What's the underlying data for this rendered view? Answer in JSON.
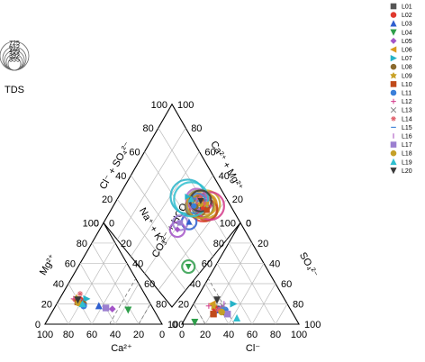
{
  "chart_data": {
    "type": "scatter",
    "subtype": "piper-diagram",
    "cation_axes": [
      "Mg²⁺",
      "Ca²⁺",
      "Na⁺ + K⁺"
    ],
    "anion_axes": [
      "CO₃²⁻ + HCO₃⁻",
      "Cl⁻",
      "SO₄²⁻"
    ],
    "diamond_axes": [
      "Cl⁻ + SO₄²⁻",
      "Ca²⁺ + Mg²⁺"
    ],
    "cation_ticks": [
      "100",
      "80",
      "60",
      "40",
      "20",
      "0"
    ],
    "anion_ticks": [
      "0",
      "20",
      "40",
      "60",
      "80",
      "100"
    ],
    "tds_legend": {
      "title": "TDS",
      "values": [
        "725",
        "612",
        "499",
        "392",
        "355"
      ]
    },
    "series": [
      {
        "name": "L01",
        "color": "#555555",
        "marker": "square",
        "cation": {
          "ca": 60,
          "mg": 22
        },
        "anion": {
          "cl": 22,
          "so4": 15
        },
        "tds": 499
      },
      {
        "name": "L02",
        "color": "#e03a2f",
        "marker": "circle",
        "cation": {
          "ca": 58,
          "mg": 24
        },
        "anion": {
          "cl": 20,
          "so4": 16
        },
        "tds": 612
      },
      {
        "name": "L03",
        "color": "#2f5fcf",
        "marker": "triangle-up",
        "cation": {
          "ca": 45,
          "mg": 18
        },
        "anion": {
          "cl": 24,
          "so4": 14
        },
        "tds": 392
      },
      {
        "name": "L04",
        "color": "#2e9e4a",
        "marker": "triangle-down",
        "cation": {
          "ca": 22,
          "mg": 14
        },
        "anion": {
          "cl": 10,
          "so4": 2
        },
        "tds": 355
      },
      {
        "name": "L05",
        "color": "#a455c8",
        "marker": "diamond",
        "cation": {
          "ca": 35,
          "mg": 15
        },
        "anion": {
          "cl": 26,
          "so4": 16
        },
        "tds": 392
      },
      {
        "name": "L06",
        "color": "#d99a1e",
        "marker": "triangle-left",
        "cation": {
          "ca": 62,
          "mg": 24
        },
        "anion": {
          "cl": 16,
          "so4": 20
        },
        "tds": 499
      },
      {
        "name": "L07",
        "color": "#27b3c8",
        "marker": "triangle-right",
        "cation": {
          "ca": 52,
          "mg": 25
        },
        "anion": {
          "cl": 34,
          "so4": 20
        },
        "tds": 725
      },
      {
        "name": "L08",
        "color": "#8a6a2e",
        "marker": "circle",
        "cation": {
          "ca": 57,
          "mg": 20
        },
        "anion": {
          "cl": 30,
          "so4": 12
        },
        "tds": 499
      },
      {
        "name": "L09",
        "color": "#c9a227",
        "marker": "star",
        "cation": {
          "ca": 60,
          "mg": 26
        },
        "anion": {
          "cl": 18,
          "so4": 18
        },
        "tds": 612
      },
      {
        "name": "L10",
        "color": "#c04a1a",
        "marker": "square",
        "cation": {
          "ca": 61,
          "mg": 22
        },
        "anion": {
          "cl": 22,
          "so4": 10
        },
        "tds": 499
      },
      {
        "name": "L11",
        "color": "#3a7fd9",
        "marker": "circle",
        "cation": {
          "ca": 58,
          "mg": 18
        },
        "anion": {
          "cl": 30,
          "so4": 14
        },
        "tds": 392
      },
      {
        "name": "L12",
        "color": "#d43a8a",
        "marker": "plus",
        "cation": {
          "ca": 63,
          "mg": 25
        },
        "anion": {
          "cl": 14,
          "so4": 18
        },
        "tds": 612
      },
      {
        "name": "L13",
        "color": "#888888",
        "marker": "cross",
        "cation": {
          "ca": 60,
          "mg": 22
        },
        "anion": {
          "cl": 26,
          "so4": 18
        },
        "tds": 499
      },
      {
        "name": "L14",
        "color": "#e0606b",
        "marker": "asterisk",
        "cation": {
          "ca": 55,
          "mg": 30
        },
        "anion": {
          "cl": 24,
          "so4": 14
        },
        "tds": 392
      },
      {
        "name": "L15",
        "color": "#4a8ad9",
        "marker": "hline",
        "cation": {
          "ca": 62,
          "mg": 20
        },
        "anion": {
          "cl": 28,
          "so4": 16
        },
        "tds": 392
      },
      {
        "name": "L16",
        "color": "#b366c7",
        "marker": "vline",
        "cation": {
          "ca": 58,
          "mg": 24
        },
        "anion": {
          "cl": 26,
          "so4": 20
        },
        "tds": 499
      },
      {
        "name": "L17",
        "color": "#9b7fd0",
        "marker": "square",
        "cation": {
          "ca": 40,
          "mg": 16
        },
        "anion": {
          "cl": 34,
          "so4": 10
        },
        "tds": 392
      },
      {
        "name": "L18",
        "color": "#c5a028",
        "marker": "circle",
        "cation": {
          "ca": 61,
          "mg": 21
        },
        "anion": {
          "cl": 28,
          "so4": 12
        },
        "tds": 612
      },
      {
        "name": "L19",
        "color": "#2fbfcf",
        "marker": "triangle-up",
        "cation": {
          "ca": 58,
          "mg": 20
        },
        "anion": {
          "cl": 44,
          "so4": 6
        },
        "tds": 725
      },
      {
        "name": "L20",
        "color": "#3a3a3a",
        "marker": "triangle-down",
        "cation": {
          "ca": 60,
          "mg": 24
        },
        "anion": {
          "cl": 18,
          "so4": 24
        },
        "tds": 499
      }
    ]
  }
}
